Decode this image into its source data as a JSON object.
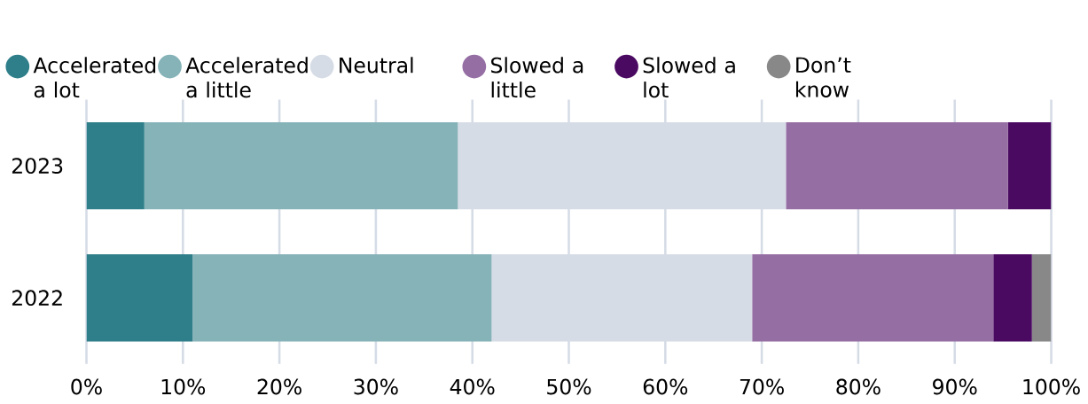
{
  "chart_data": {
    "type": "bar",
    "orientation": "horizontal",
    "stacked": true,
    "categories": [
      "2023",
      "2022"
    ],
    "series": [
      {
        "name": "Accelerated a lot",
        "color": "#2e7f8a",
        "values": [
          6,
          11
        ]
      },
      {
        "name": "Accelerated a little",
        "color": "#85b3b8",
        "values": [
          32.5,
          31
        ]
      },
      {
        "name": "Neutral",
        "color": "#d6dce6",
        "values": [
          34,
          27
        ]
      },
      {
        "name": "Slowed a little",
        "color": "#956ea4",
        "values": [
          23,
          25
        ]
      },
      {
        "name": "Slowed a lot",
        "color": "#4b0a62",
        "values": [
          4.5,
          4
        ]
      },
      {
        "name": "Don’t know",
        "color": "#888888",
        "values": [
          0,
          2
        ]
      }
    ],
    "xlim": [
      0,
      100
    ],
    "xticks": [
      {
        "value": 0,
        "label": "0%"
      },
      {
        "value": 10,
        "label": "10%"
      },
      {
        "value": 20,
        "label": "20%"
      },
      {
        "value": 30,
        "label": "30%"
      },
      {
        "value": 40,
        "label": "40%"
      },
      {
        "value": 50,
        "label": "50%"
      },
      {
        "value": 60,
        "label": "60%"
      },
      {
        "value": 70,
        "label": "70%"
      },
      {
        "value": 80,
        "label": "80%"
      },
      {
        "value": 90,
        "label": "90%"
      },
      {
        "value": 100,
        "label": "100%"
      }
    ],
    "grid": "x",
    "legend": "top"
  }
}
